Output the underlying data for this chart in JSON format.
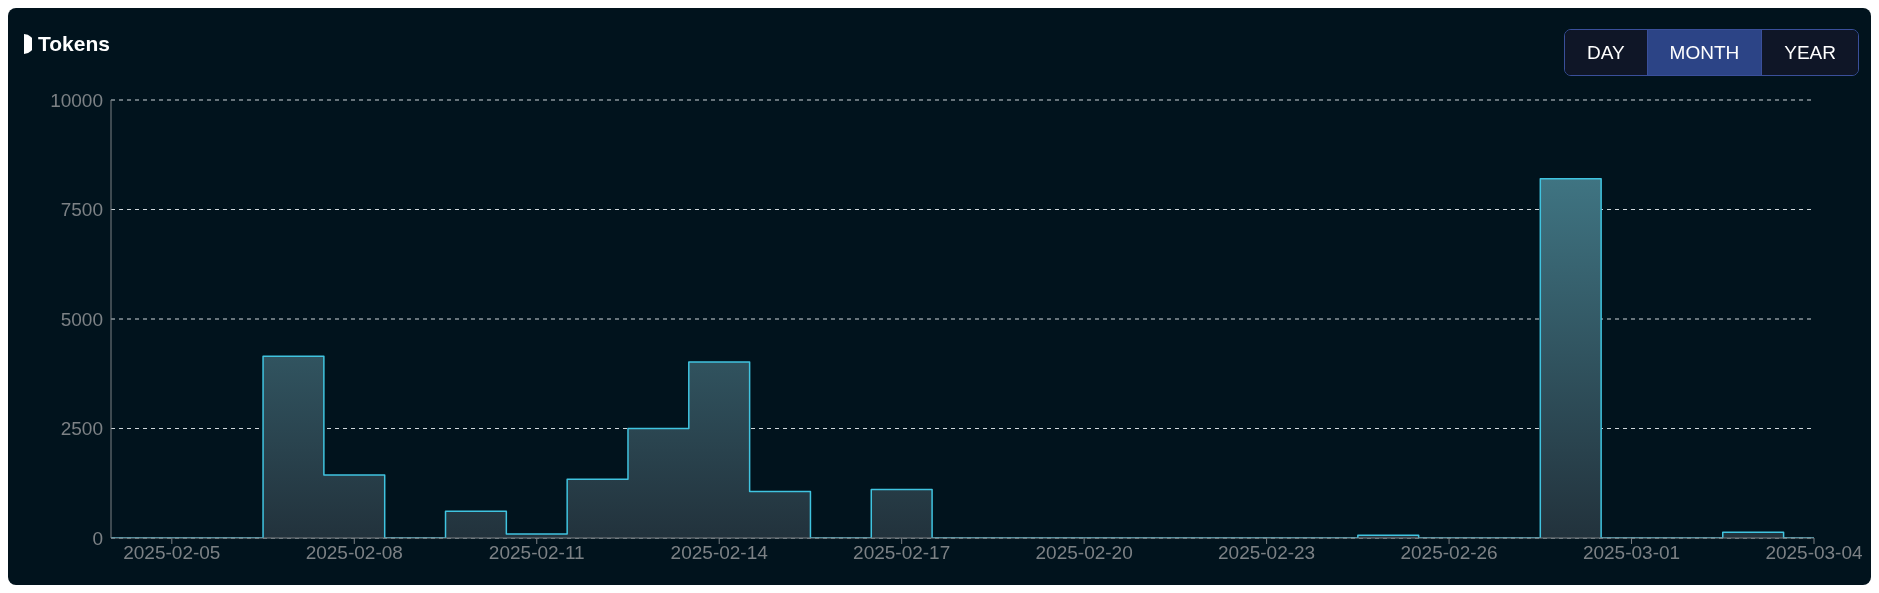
{
  "chart_data": {
    "type": "step",
    "title": "Tokens",
    "annotations": [
      "DAY",
      "MONTH",
      "YEAR"
    ],
    "x": [
      "2025-02-04",
      "2025-02-05",
      "2025-02-06",
      "2025-02-07",
      "2025-02-08",
      "2025-02-09",
      "2025-02-10",
      "2025-02-11",
      "2025-02-12",
      "2025-02-13",
      "2025-02-14",
      "2025-02-15",
      "2025-02-16",
      "2025-02-17",
      "2025-02-18",
      "2025-02-19",
      "2025-02-20",
      "2025-02-21",
      "2025-02-22",
      "2025-02-23",
      "2025-02-24",
      "2025-02-25",
      "2025-02-26",
      "2025-02-27",
      "2025-02-28",
      "2025-03-01",
      "2025-03-02",
      "2025-03-03",
      "2025-03-04"
    ],
    "series": [
      {
        "color": "#40c4e0",
        "values": [
          0,
          0,
          0,
          4150,
          1440,
          0,
          610,
          90,
          1340,
          2500,
          4020,
          1060,
          0,
          1110,
          0,
          0,
          0,
          0,
          0,
          0,
          0,
          60,
          0,
          0,
          8200,
          0,
          0,
          130,
          0
        ]
      }
    ],
    "xlim": [
      "2025-02-04",
      "2025-03-04"
    ],
    "xticks": [
      "2025-02-05",
      "2025-02-08",
      "2025-02-11",
      "2025-02-14",
      "2025-02-17",
      "2025-02-20",
      "2025-02-23",
      "2025-02-26",
      "2025-03-01",
      "2025-03-04"
    ],
    "ylim": [
      0,
      10000
    ],
    "yticks": [
      0,
      2500,
      5000,
      7500,
      10000
    ],
    "grid": "y",
    "legend": false
  }
}
